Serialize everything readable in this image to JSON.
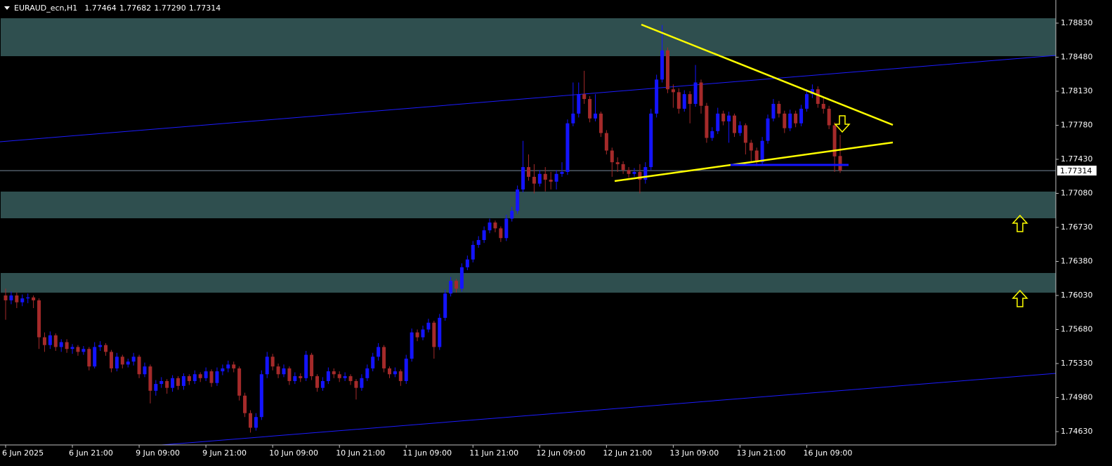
{
  "chart_data": {
    "type": "candlestick",
    "title": "EURAUD_ecn,H1",
    "ohlc_labels": [
      "1.77464",
      "1.77682",
      "1.77290",
      "1.77314"
    ],
    "up_color": "#1414ff",
    "down_color": "#a52a2a",
    "ylim": [
      1.74493,
      1.79068
    ],
    "yticks": [
      {
        "value": 1.7883,
        "label": "1.78830"
      },
      {
        "value": 1.7848,
        "label": "1.78480"
      },
      {
        "value": 1.7813,
        "label": "1.78130"
      },
      {
        "value": 1.7778,
        "label": "1.77780"
      },
      {
        "value": 1.7743,
        "label": "1.77430"
      },
      {
        "value": 1.7708,
        "label": "1.77080"
      },
      {
        "value": 1.7673,
        "label": "1.76730"
      },
      {
        "value": 1.7638,
        "label": "1.76380"
      },
      {
        "value": 1.7603,
        "label": "1.76030"
      },
      {
        "value": 1.7568,
        "label": "1.75680"
      },
      {
        "value": 1.7533,
        "label": "1.75330"
      },
      {
        "value": 1.7498,
        "label": "1.74980"
      },
      {
        "value": 1.7463,
        "label": "1.74630"
      }
    ],
    "categories": [
      "6 Jun 2025",
      null,
      null,
      null,
      null,
      null,
      null,
      null,
      null,
      null,
      null,
      null,
      "6 Jun 21:00",
      null,
      null,
      null,
      null,
      null,
      null,
      null,
      null,
      null,
      null,
      null,
      "9 Jun 09:00",
      null,
      null,
      null,
      null,
      null,
      null,
      null,
      null,
      null,
      null,
      null,
      "9 Jun 21:00",
      null,
      null,
      null,
      null,
      null,
      null,
      null,
      null,
      null,
      null,
      null,
      "10 Jun 09:00",
      null,
      null,
      null,
      null,
      null,
      null,
      null,
      null,
      null,
      null,
      null,
      "10 Jun 21:00",
      null,
      null,
      null,
      null,
      null,
      null,
      null,
      null,
      null,
      null,
      null,
      "11 Jun 09:00",
      null,
      null,
      null,
      null,
      null,
      null,
      null,
      null,
      null,
      null,
      null,
      "11 Jun 21:00",
      null,
      null,
      null,
      null,
      null,
      null,
      null,
      null,
      null,
      null,
      null,
      "12 Jun 09:00",
      null,
      null,
      null,
      null,
      null,
      null,
      null,
      null,
      null,
      null,
      null,
      "12 Jun 21:00",
      null,
      null,
      null,
      null,
      null,
      null,
      null,
      null,
      null,
      null,
      null,
      "13 Jun 09:00",
      null,
      null,
      null,
      null,
      null,
      null,
      null,
      null,
      null,
      null,
      null,
      "13 Jun 21:00",
      null,
      null,
      null,
      null,
      null,
      null,
      null,
      null,
      null,
      null,
      null,
      "16 Jun 09:00",
      null,
      null,
      null,
      null,
      null,
      null
    ],
    "candles": [
      [
        1.7603,
        1.761,
        1.7578,
        1.7598
      ],
      [
        1.7598,
        1.7607,
        1.7594,
        1.7603
      ],
      [
        1.7603,
        1.7606,
        1.759,
        1.7596
      ],
      [
        1.7596,
        1.7604,
        1.7592,
        1.76
      ],
      [
        1.76,
        1.7605,
        1.7595,
        1.7601
      ],
      [
        1.7601,
        1.7603,
        1.759,
        1.7598
      ],
      [
        1.7598,
        1.76,
        1.7548,
        1.756
      ],
      [
        1.756,
        1.7565,
        1.7545,
        1.7552
      ],
      [
        1.7552,
        1.7566,
        1.7548,
        1.7562
      ],
      [
        1.7562,
        1.7564,
        1.7546,
        1.755
      ],
      [
        1.755,
        1.7558,
        1.7545,
        1.7555
      ],
      [
        1.7555,
        1.7558,
        1.7544,
        1.7548
      ],
      [
        1.7548,
        1.7553,
        1.7543,
        1.755
      ],
      [
        1.755,
        1.7552,
        1.7541,
        1.7545
      ],
      [
        1.7545,
        1.7551,
        1.7542,
        1.7548
      ],
      [
        1.7548,
        1.755,
        1.7526,
        1.753
      ],
      [
        1.753,
        1.7555,
        1.7528,
        1.755
      ],
      [
        1.755,
        1.7556,
        1.7546,
        1.7552
      ],
      [
        1.7552,
        1.7554,
        1.7541,
        1.7545
      ],
      [
        1.7545,
        1.7547,
        1.7524,
        1.7528
      ],
      [
        1.7528,
        1.7544,
        1.7525,
        1.754
      ],
      [
        1.754,
        1.7542,
        1.7528,
        1.7532
      ],
      [
        1.7532,
        1.7538,
        1.7529,
        1.7535
      ],
      [
        1.7535,
        1.7544,
        1.7531,
        1.754
      ],
      [
        1.754,
        1.7542,
        1.7518,
        1.7522
      ],
      [
        1.7522,
        1.7534,
        1.7519,
        1.753
      ],
      [
        1.753,
        1.7532,
        1.7492,
        1.7505
      ],
      [
        1.7505,
        1.7516,
        1.75,
        1.7512
      ],
      [
        1.7512,
        1.7519,
        1.7508,
        1.7515
      ],
      [
        1.7515,
        1.7517,
        1.7502,
        1.7508
      ],
      [
        1.7508,
        1.7521,
        1.7504,
        1.7518
      ],
      [
        1.7518,
        1.752,
        1.7506,
        1.751
      ],
      [
        1.751,
        1.7523,
        1.7506,
        1.752
      ],
      [
        1.752,
        1.7522,
        1.7511,
        1.7515
      ],
      [
        1.7515,
        1.7526,
        1.7512,
        1.7522
      ],
      [
        1.7522,
        1.7524,
        1.7514,
        1.7518
      ],
      [
        1.7518,
        1.7529,
        1.7515,
        1.7525
      ],
      [
        1.7525,
        1.7527,
        1.7509,
        1.7513
      ],
      [
        1.7513,
        1.7529,
        1.751,
        1.7525
      ],
      [
        1.7525,
        1.7532,
        1.7521,
        1.7528
      ],
      [
        1.7528,
        1.7536,
        1.7524,
        1.7532
      ],
      [
        1.7532,
        1.7535,
        1.7524,
        1.7528
      ],
      [
        1.7528,
        1.753,
        1.7495,
        1.75
      ],
      [
        1.75,
        1.7503,
        1.7478,
        1.7482
      ],
      [
        1.7482,
        1.7485,
        1.7462,
        1.7467
      ],
      [
        1.7467,
        1.7482,
        1.7464,
        1.7478
      ],
      [
        1.7478,
        1.7526,
        1.7475,
        1.7522
      ],
      [
        1.7522,
        1.7545,
        1.7518,
        1.754
      ],
      [
        1.754,
        1.7543,
        1.7526,
        1.753
      ],
      [
        1.753,
        1.7533,
        1.7518,
        1.7522
      ],
      [
        1.7522,
        1.7532,
        1.7519,
        1.7528
      ],
      [
        1.7528,
        1.753,
        1.7511,
        1.7515
      ],
      [
        1.7515,
        1.7524,
        1.7512,
        1.752
      ],
      [
        1.752,
        1.7523,
        1.7514,
        1.7518
      ],
      [
        1.7518,
        1.7546,
        1.7515,
        1.7542
      ],
      [
        1.7542,
        1.7544,
        1.7516,
        1.752
      ],
      [
        1.752,
        1.7522,
        1.7504,
        1.7508
      ],
      [
        1.7508,
        1.7519,
        1.7505,
        1.7515
      ],
      [
        1.7515,
        1.7529,
        1.7512,
        1.7525
      ],
      [
        1.7525,
        1.7528,
        1.7518,
        1.7522
      ],
      [
        1.7522,
        1.7525,
        1.7514,
        1.7518
      ],
      [
        1.7518,
        1.7524,
        1.7515,
        1.752
      ],
      [
        1.752,
        1.7522,
        1.7511,
        1.7515
      ],
      [
        1.7515,
        1.7517,
        1.7496,
        1.7508
      ],
      [
        1.7508,
        1.7522,
        1.7505,
        1.7518
      ],
      [
        1.7518,
        1.7532,
        1.7515,
        1.7528
      ],
      [
        1.7528,
        1.7544,
        1.7525,
        1.754
      ],
      [
        1.754,
        1.7554,
        1.7536,
        1.755
      ],
      [
        1.755,
        1.7552,
        1.7524,
        1.7528
      ],
      [
        1.7528,
        1.753,
        1.7518,
        1.7522
      ],
      [
        1.7522,
        1.7529,
        1.7519,
        1.7525
      ],
      [
        1.7525,
        1.7527,
        1.751,
        1.7515
      ],
      [
        1.7515,
        1.7542,
        1.7512,
        1.7538
      ],
      [
        1.7538,
        1.7569,
        1.7535,
        1.7565
      ],
      [
        1.7565,
        1.7568,
        1.7556,
        1.756
      ],
      [
        1.756,
        1.7572,
        1.7557,
        1.7568
      ],
      [
        1.7568,
        1.7579,
        1.7565,
        1.7575
      ],
      [
        1.7575,
        1.7577,
        1.7538,
        1.755
      ],
      [
        1.755,
        1.7584,
        1.7547,
        1.758
      ],
      [
        1.758,
        1.7609,
        1.7577,
        1.7605
      ],
      [
        1.7605,
        1.7622,
        1.7602,
        1.7618
      ],
      [
        1.7618,
        1.762,
        1.7606,
        1.761
      ],
      [
        1.761,
        1.7636,
        1.7607,
        1.7632
      ],
      [
        1.7632,
        1.7644,
        1.7629,
        1.764
      ],
      [
        1.764,
        1.7659,
        1.7637,
        1.7655
      ],
      [
        1.7655,
        1.7664,
        1.7652,
        1.766
      ],
      [
        1.766,
        1.7674,
        1.7657,
        1.767
      ],
      [
        1.767,
        1.7682,
        1.7667,
        1.7678
      ],
      [
        1.7678,
        1.768,
        1.7668,
        1.7672
      ],
      [
        1.7672,
        1.7674,
        1.7658,
        1.7662
      ],
      [
        1.7662,
        1.7686,
        1.7659,
        1.7682
      ],
      [
        1.7682,
        1.7694,
        1.7679,
        1.769
      ],
      [
        1.769,
        1.7716,
        1.7687,
        1.7712
      ],
      [
        1.7712,
        1.7762,
        1.7709,
        1.7735
      ],
      [
        1.7735,
        1.7748,
        1.7721,
        1.7725
      ],
      [
        1.7725,
        1.7738,
        1.7708,
        1.7718
      ],
      [
        1.7718,
        1.7732,
        1.7715,
        1.7728
      ],
      [
        1.7728,
        1.7735,
        1.771,
        1.7722
      ],
      [
        1.7722,
        1.773,
        1.7712,
        1.772
      ],
      [
        1.772,
        1.7732,
        1.7712,
        1.7728
      ],
      [
        1.7728,
        1.774,
        1.7725,
        1.773
      ],
      [
        1.773,
        1.7784,
        1.7727,
        1.778
      ],
      [
        1.778,
        1.7822,
        1.7777,
        1.779
      ],
      [
        1.779,
        1.7822,
        1.7786,
        1.781
      ],
      [
        1.781,
        1.7834,
        1.78,
        1.7805
      ],
      [
        1.7805,
        1.7808,
        1.7781,
        1.7785
      ],
      [
        1.7785,
        1.781,
        1.7782,
        1.779
      ],
      [
        1.779,
        1.7792,
        1.7766,
        1.777
      ],
      [
        1.777,
        1.7773,
        1.7748,
        1.7752
      ],
      [
        1.7752,
        1.7755,
        1.7725,
        1.774
      ],
      [
        1.774,
        1.7745,
        1.773,
        1.7738
      ],
      [
        1.7738,
        1.7741,
        1.7728,
        1.7732
      ],
      [
        1.7732,
        1.7735,
        1.7724,
        1.7728
      ],
      [
        1.7728,
        1.7734,
        1.7725,
        1.773
      ],
      [
        1.773,
        1.7738,
        1.7708,
        1.7722
      ],
      [
        1.7722,
        1.774,
        1.7718,
        1.7735
      ],
      [
        1.7735,
        1.7795,
        1.7732,
        1.779
      ],
      [
        1.779,
        1.783,
        1.7786,
        1.7825
      ],
      [
        1.7825,
        1.7881,
        1.7822,
        1.7855
      ],
      [
        1.7855,
        1.7858,
        1.7811,
        1.7815
      ],
      [
        1.7815,
        1.782,
        1.7796,
        1.7812
      ],
      [
        1.7812,
        1.7816,
        1.779,
        1.7795
      ],
      [
        1.7795,
        1.7814,
        1.7792,
        1.781
      ],
      [
        1.781,
        1.7813,
        1.778,
        1.78
      ],
      [
        1.78,
        1.784,
        1.7797,
        1.7822
      ],
      [
        1.7822,
        1.7825,
        1.779,
        1.7798
      ],
      [
        1.7798,
        1.7801,
        1.776,
        1.7765
      ],
      [
        1.7765,
        1.7776,
        1.7762,
        1.7772
      ],
      [
        1.7772,
        1.7796,
        1.7769,
        1.779
      ],
      [
        1.779,
        1.7793,
        1.7778,
        1.7782
      ],
      [
        1.7782,
        1.7792,
        1.776,
        1.7788
      ],
      [
        1.7788,
        1.779,
        1.7766,
        1.777
      ],
      [
        1.777,
        1.7782,
        1.7767,
        1.7778
      ],
      [
        1.7778,
        1.778,
        1.7748,
        1.776
      ],
      [
        1.776,
        1.7763,
        1.774,
        1.7752
      ],
      [
        1.7752,
        1.7755,
        1.7736,
        1.774
      ],
      [
        1.774,
        1.7766,
        1.7737,
        1.7762
      ],
      [
        1.7762,
        1.7789,
        1.7759,
        1.7785
      ],
      [
        1.7785,
        1.7805,
        1.7782,
        1.78
      ],
      [
        1.78,
        1.7803,
        1.7786,
        1.779
      ],
      [
        1.779,
        1.7793,
        1.777,
        1.7775
      ],
      [
        1.7775,
        1.7794,
        1.7772,
        1.779
      ],
      [
        1.779,
        1.7793,
        1.7776,
        1.778
      ],
      [
        1.778,
        1.7799,
        1.7777,
        1.7795
      ],
      [
        1.7795,
        1.7815,
        1.7792,
        1.781
      ],
      [
        1.781,
        1.782,
        1.7806,
        1.7815
      ],
      [
        1.7815,
        1.7818,
        1.7796,
        1.78
      ],
      [
        1.78,
        1.7806,
        1.779,
        1.7795
      ],
      [
        1.7795,
        1.7798,
        1.7774,
        1.7778
      ],
      [
        1.7778,
        1.7781,
        1.773,
        1.7746
      ],
      [
        1.77464,
        1.77682,
        1.7729,
        1.77314
      ]
    ]
  }
}
